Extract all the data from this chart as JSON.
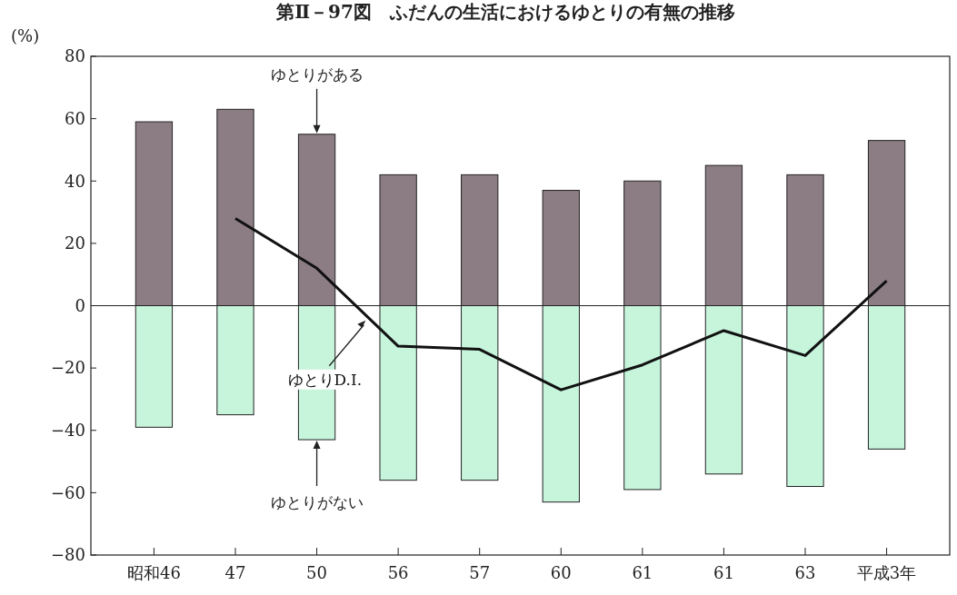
{
  "chart_data": {
    "type": "bar",
    "title": "第Ⅱ－97図　ふだんの生活におけるゆとりの有無の推移",
    "ylabel": "(%)",
    "stacked": true,
    "ref_lines": [
      {
        "axis": "y",
        "value": 0,
        "color": "#222222"
      }
    ],
    "categories": [
      "昭和46",
      "47",
      "50",
      "56",
      "57",
      "60",
      "61",
      "61",
      "63",
      "平成3年"
    ],
    "series": [
      {
        "name": "ゆとりがある",
        "color": "#8c7c84",
        "values": [
          59,
          63,
          55,
          42,
          42,
          37,
          40,
          45,
          42,
          53
        ]
      },
      {
        "name": "ゆとりがない",
        "color": "#c6f5dc",
        "values": [
          -39,
          -35,
          -43,
          -56,
          -56,
          -63,
          -59,
          -54,
          -58,
          -46
        ]
      },
      {
        "name": "ゆとりD.I.",
        "type": "line",
        "color": "#111111",
        "values": [
          null,
          28,
          12,
          -13,
          -14,
          -27,
          -19,
          -8,
          -16,
          8
        ]
      }
    ],
    "ylim": [
      -80,
      80
    ],
    "yticks": [
      {
        "value": -80,
        "label": "−80"
      },
      {
        "value": -60,
        "label": "−60"
      },
      {
        "value": -40,
        "label": "−40"
      },
      {
        "value": -20,
        "label": "−20"
      },
      0,
      20,
      40,
      60,
      80
    ],
    "grid": false,
    "legend": false,
    "marker": "none",
    "line_style": "solid"
  }
}
